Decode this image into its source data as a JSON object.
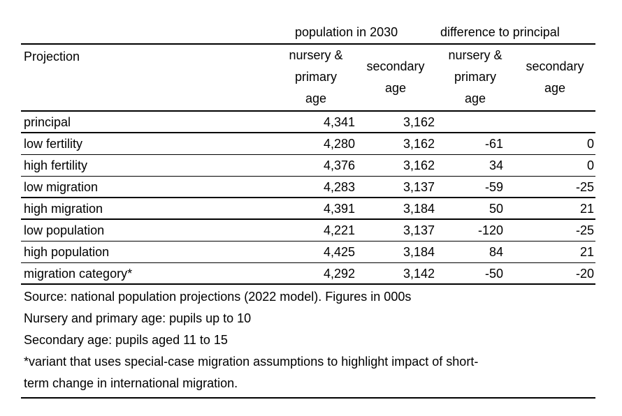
{
  "table": {
    "group_headers": {
      "population": "population in 2030",
      "difference": "difference to principal"
    },
    "column_headers": {
      "projection": "Projection",
      "pop_nursery": [
        "nursery &",
        "primary",
        "age"
      ],
      "pop_secondary": [
        "secondary",
        "age"
      ],
      "diff_nursery": [
        "nursery &",
        "primary",
        "age"
      ],
      "diff_secondary": [
        "secondary",
        "age"
      ]
    },
    "rows": [
      {
        "name": "principal",
        "pop_nursery": "4,341",
        "pop_secondary": "3,162",
        "diff_nursery": "",
        "diff_secondary": ""
      },
      {
        "name": "low fertility",
        "pop_nursery": "4,280",
        "pop_secondary": "3,162",
        "diff_nursery": "-61",
        "diff_secondary": "0"
      },
      {
        "name": "high fertility",
        "pop_nursery": "4,376",
        "pop_secondary": "3,162",
        "diff_nursery": "34",
        "diff_secondary": "0"
      },
      {
        "name": "low migration",
        "pop_nursery": "4,283",
        "pop_secondary": "3,137",
        "diff_nursery": "-59",
        "diff_secondary": "-25"
      },
      {
        "name": "high migration",
        "pop_nursery": "4,391",
        "pop_secondary": "3,184",
        "diff_nursery": "50",
        "diff_secondary": "21"
      },
      {
        "name": "low population",
        "pop_nursery": "4,221",
        "pop_secondary": "3,137",
        "diff_nursery": "-120",
        "diff_secondary": "-25"
      },
      {
        "name": "high population",
        "pop_nursery": "4,425",
        "pop_secondary": "3,184",
        "diff_nursery": "84",
        "diff_secondary": "21"
      },
      {
        "name": "migration category*",
        "pop_nursery": "4,292",
        "pop_secondary": "3,142",
        "diff_nursery": "-50",
        "diff_secondary": "-20"
      }
    ],
    "notes": [
      "Source: national population projections (2022 model). Figures in 000s",
      "Nursery and primary age: pupils up to 10",
      "Secondary age: pupils aged 11 to 15",
      "*variant that uses special-case migration assumptions to highlight impact of short-",
      "term change in international migration."
    ]
  }
}
